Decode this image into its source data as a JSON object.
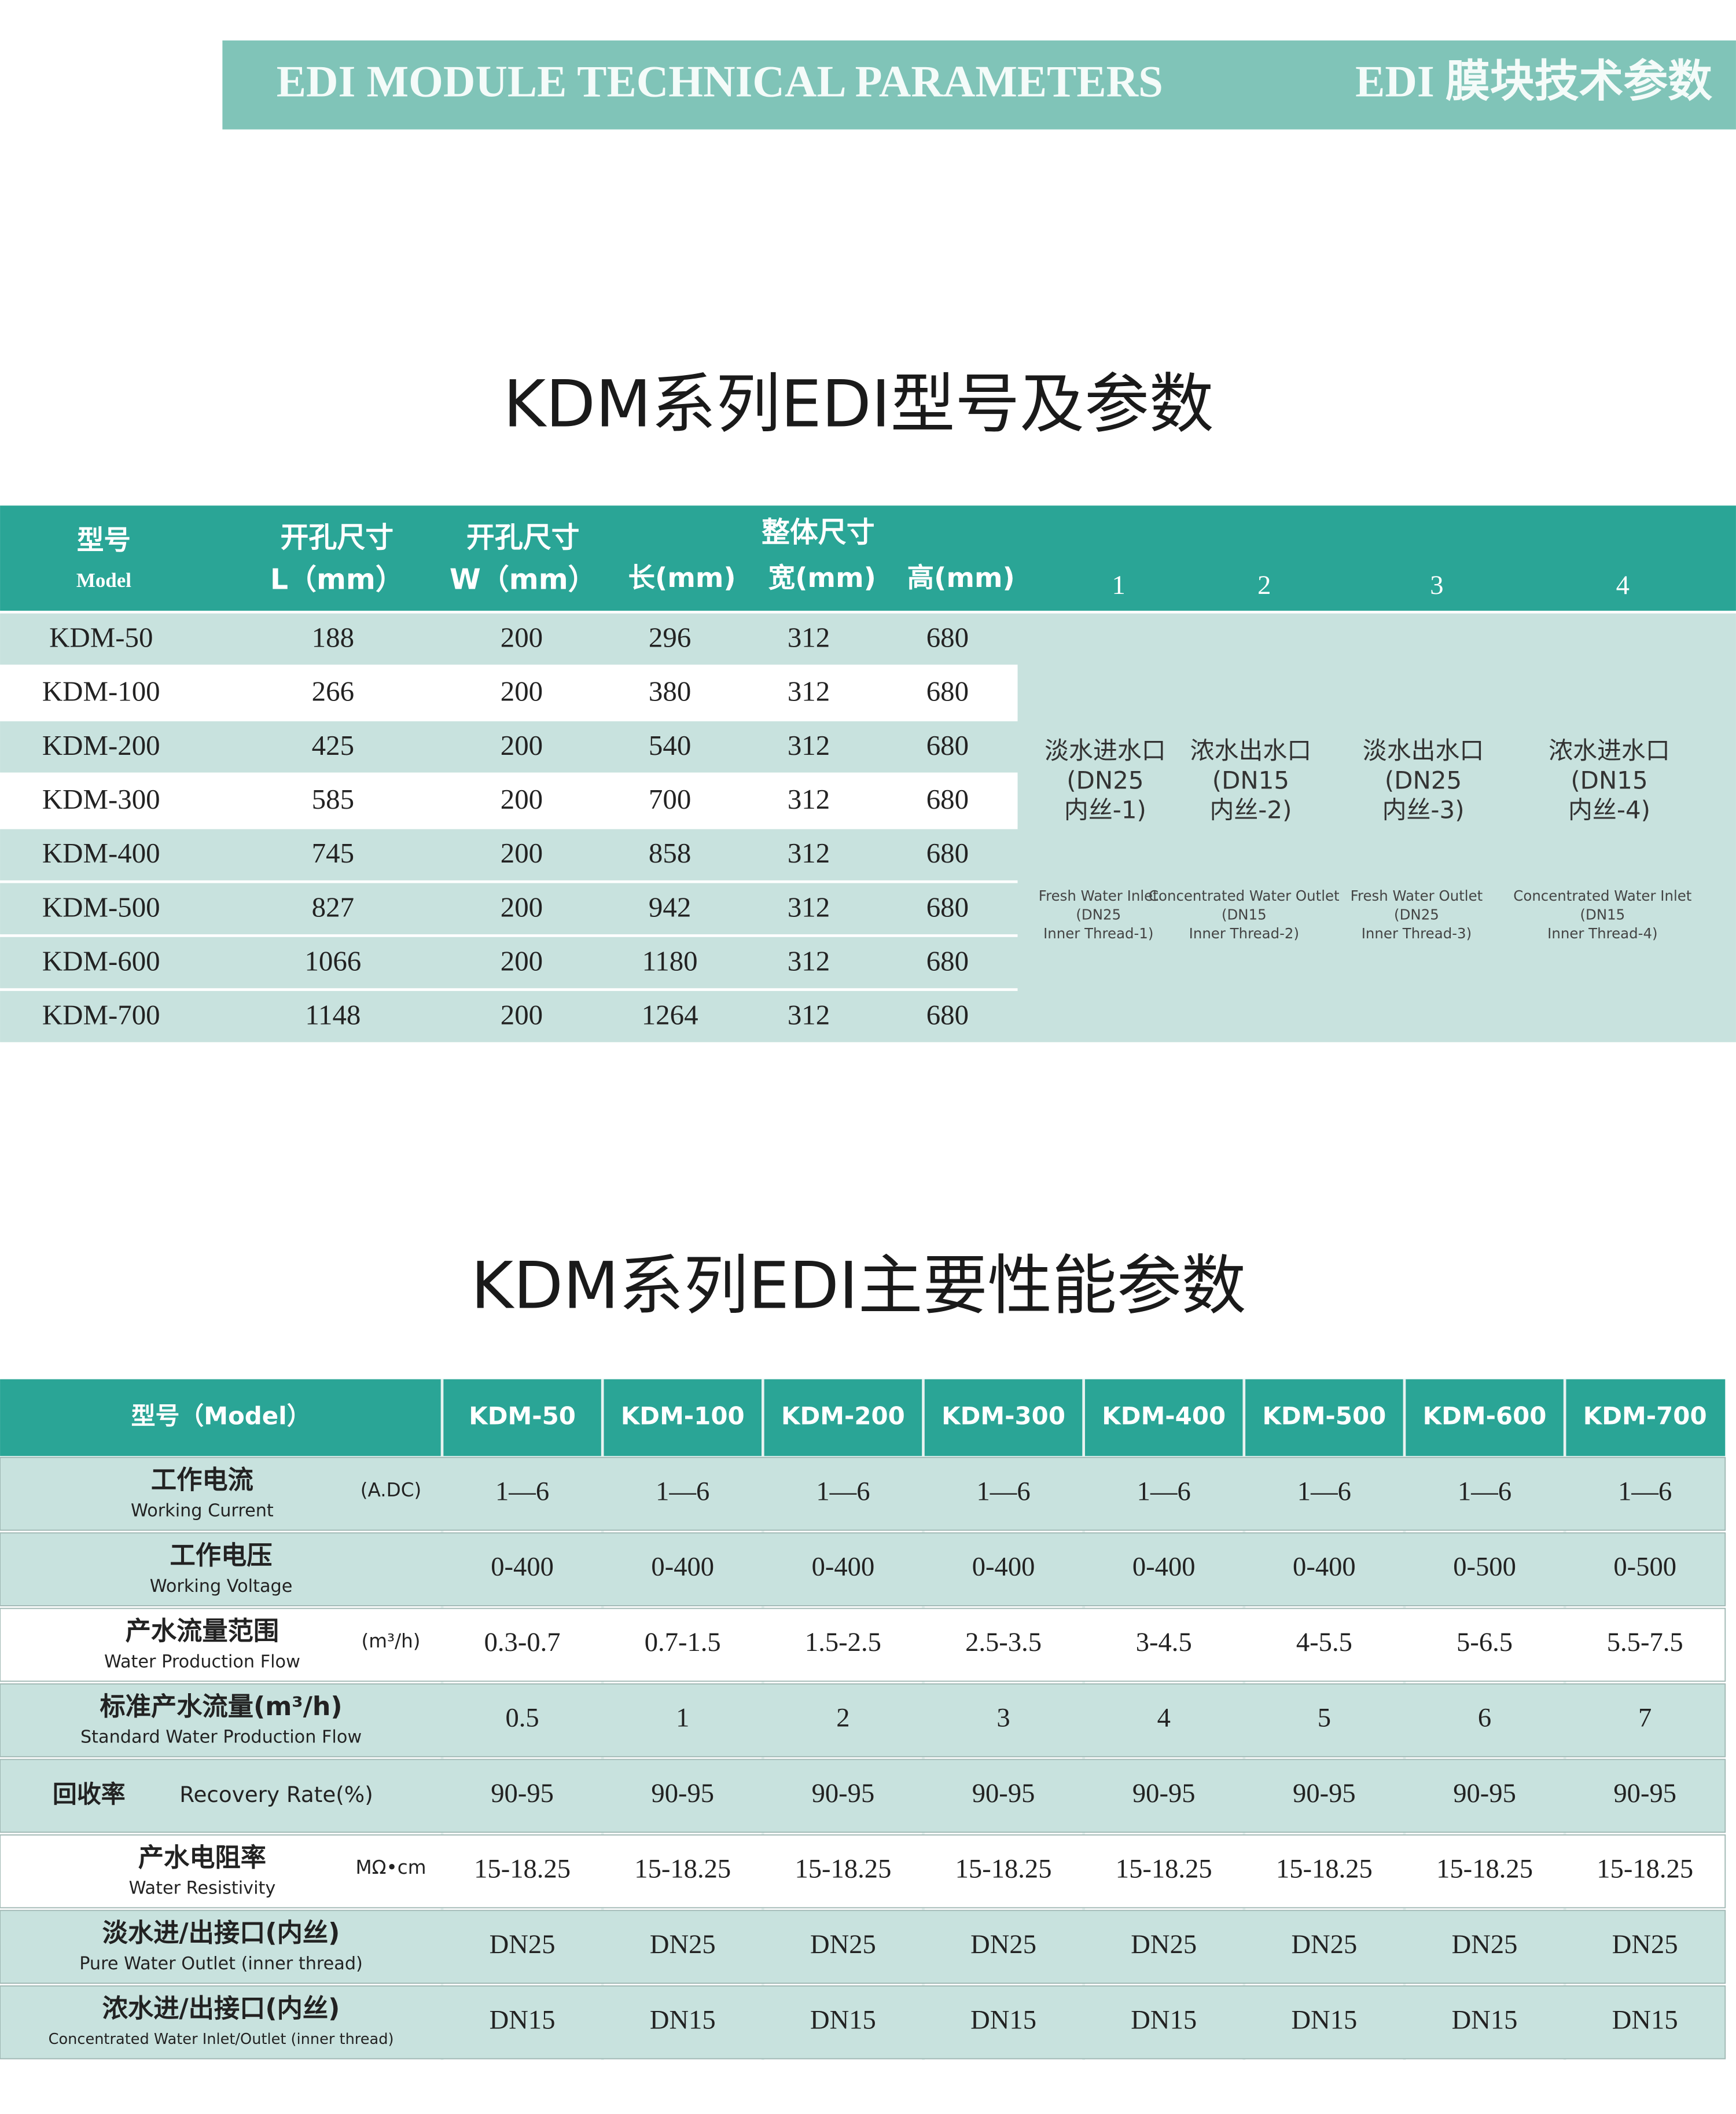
{
  "header": {
    "title_en": "EDI MODULE TECHNICAL PARAMETERS",
    "title_cn": "EDI 膜块技术参数"
  },
  "table1": {
    "title": "KDM系列EDI型号及参数",
    "header": {
      "model": {
        "cn": "型号",
        "en": "Model"
      },
      "hole_l": {
        "cn": "开孔尺寸",
        "unit": "L（mm）"
      },
      "hole_w": {
        "cn": "开孔尺寸",
        "unit": "W（mm）"
      },
      "overall": {
        "cn": "整体尺寸",
        "cols": [
          "长(mm)",
          "宽(mm)",
          "高(mm)"
        ]
      },
      "ports": [
        "1",
        "2",
        "3",
        "4"
      ]
    },
    "rows": [
      [
        "KDM-50",
        188,
        200,
        296,
        312,
        680
      ],
      [
        "KDM-100",
        266,
        200,
        380,
        312,
        680
      ],
      [
        "KDM-200",
        425,
        200,
        540,
        312,
        680
      ],
      [
        "KDM-300",
        585,
        200,
        700,
        312,
        680
      ],
      [
        "KDM-400",
        745,
        200,
        858,
        312,
        680
      ],
      [
        "KDM-500",
        827,
        200,
        942,
        312,
        680
      ],
      [
        "KDM-600",
        1066,
        200,
        1180,
        312,
        680
      ],
      [
        "KDM-700",
        1148,
        200,
        1264,
        312,
        680
      ]
    ],
    "ports": [
      {
        "cn": [
          "淡水进水口",
          "(DN25",
          "内丝-1)"
        ],
        "en": [
          "Fresh Water Inlet",
          "(DN25",
          "Inner Thread-1)"
        ]
      },
      {
        "cn": [
          "浓水出水口",
          "(DN15",
          "内丝-2)"
        ],
        "en": [
          "Concentrated Water Outlet",
          "(DN15",
          "Inner Thread-2)"
        ]
      },
      {
        "cn": [
          "淡水出水口",
          "(DN25",
          "内丝-3)"
        ],
        "en": [
          "Fresh Water Outlet",
          "(DN25",
          "Inner Thread-3)"
        ]
      },
      {
        "cn": [
          "浓水进水口",
          "(DN15",
          "内丝-4)"
        ],
        "en": [
          "Concentrated Water Inlet",
          "(DN15",
          "Inner Thread-4)"
        ]
      }
    ]
  },
  "table2": {
    "title": "KDM系列EDI主要性能参数",
    "header": [
      "型号（Model）",
      "KDM-50",
      "KDM-100",
      "KDM-200",
      "KDM-300",
      "KDM-400",
      "KDM-500",
      "KDM-600",
      "KDM-700"
    ],
    "rows": [
      {
        "label_cn": "工作电流",
        "label_en": "Working Current",
        "unit": "(A.DC)",
        "values": [
          "1—6",
          "1—6",
          "1—6",
          "1—6",
          "1—6",
          "1—6",
          "1—6",
          "1—6"
        ]
      },
      {
        "label_cn": "工作电压",
        "label_en": "Working Voltage",
        "values": [
          "0-400",
          "0-400",
          "0-400",
          "0-400",
          "0-400",
          "0-400",
          "0-500",
          "0-500"
        ]
      },
      {
        "label_cn": "产水流量范围",
        "label_en": "Water Production Flow",
        "unit": "(m³/h)",
        "values": [
          "0.3-0.7",
          "0.7-1.5",
          "1.5-2.5",
          "2.5-3.5",
          "3-4.5",
          "4-5.5",
          "5-6.5",
          "5.5-7.5"
        ]
      },
      {
        "label_cn": "标准产水流量(m³/h)",
        "label_en": "Standard Water Production Flow",
        "values": [
          0.5,
          1,
          2,
          3,
          4,
          5,
          6,
          7
        ]
      },
      {
        "label_cn": "回收率",
        "label_en": "Recovery Rate(%)",
        "values": [
          "90-95",
          "90-95",
          "90-95",
          "90-95",
          "90-95",
          "90-95",
          "90-95",
          "90-95"
        ]
      },
      {
        "label_cn": "产水电阻率",
        "label_en": "Water Resistivity",
        "unit": "MΩ•cm",
        "values": [
          "15-18.25",
          "15-18.25",
          "15-18.25",
          "15-18.25",
          "15-18.25",
          "15-18.25",
          "15-18.25",
          "15-18.25"
        ]
      },
      {
        "label_cn": "淡水进/出接口(内丝)",
        "label_en": "Pure Water Outlet (inner thread)",
        "values": [
          "DN25",
          "DN25",
          "DN25",
          "DN25",
          "DN25",
          "DN25",
          "DN25",
          "DN25"
        ]
      },
      {
        "label_cn": "浓水进/出接口(内丝)",
        "label_en": "Concentrated Water Inlet/Outlet (inner thread)",
        "values": [
          "DN15",
          "DN15",
          "DN15",
          "DN15",
          "DN15",
          "DN15",
          "DN15",
          "DN15"
        ]
      }
    ]
  }
}
